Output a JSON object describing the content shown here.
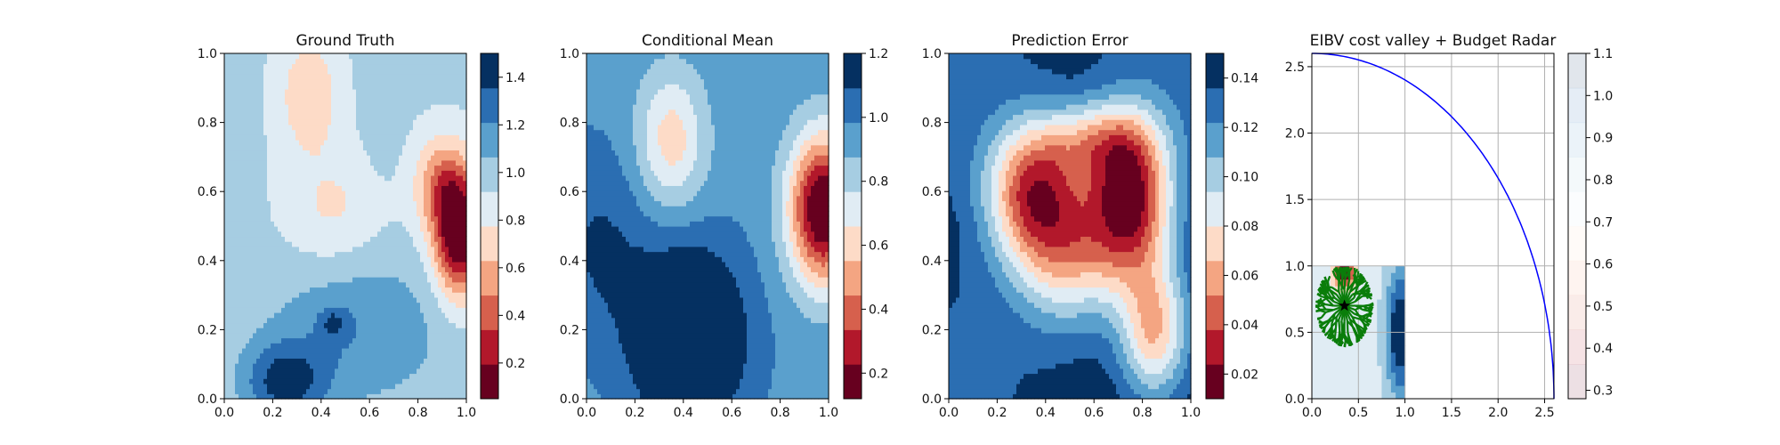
{
  "chart_data": [
    {
      "type": "heatmap",
      "title": "Ground Truth",
      "xlabel": "",
      "ylabel": "",
      "xlim": [
        0,
        1
      ],
      "ylim": [
        0,
        1
      ],
      "xticks": [
        "0.0",
        "0.2",
        "0.4",
        "0.6",
        "0.8",
        "1.0"
      ],
      "yticks": [
        "0.0",
        "0.2",
        "0.4",
        "0.6",
        "0.8",
        "1.0"
      ],
      "grid": false,
      "colormap": "RdBu",
      "colorbar": {
        "range": [
          0.05,
          1.5
        ],
        "levels": 10,
        "ticks": [
          "0.2",
          "0.4",
          "0.6",
          "0.8",
          "1.0",
          "1.2",
          "1.4"
        ],
        "tick_values": [
          0.2,
          0.4,
          0.6,
          0.8,
          1.0,
          1.2,
          1.4
        ]
      },
      "features": [
        {
          "type": "low",
          "x": 0.97,
          "y": 0.47,
          "sx": 0.07,
          "sy": 0.12,
          "amp": -0.95
        },
        {
          "type": "low",
          "x": 0.9,
          "y": 0.62,
          "sx": 0.08,
          "sy": 0.1,
          "amp": -0.45
        },
        {
          "type": "low",
          "x": 0.35,
          "y": 0.88,
          "sx": 0.09,
          "sy": 0.12,
          "amp": -0.3
        },
        {
          "type": "low",
          "x": 0.45,
          "y": 0.55,
          "sx": 0.14,
          "sy": 0.12,
          "amp": -0.2
        },
        {
          "type": "high",
          "x": 0.25,
          "y": 0.05,
          "sx": 0.12,
          "sy": 0.08,
          "amp": 0.45
        },
        {
          "type": "high",
          "x": 0.55,
          "y": 0.2,
          "sx": 0.25,
          "sy": 0.15,
          "amp": 0.25
        },
        {
          "type": "high",
          "x": 0.45,
          "y": 0.22,
          "sx": 0.04,
          "sy": 0.03,
          "amp": 0.25
        },
        {
          "type": "high",
          "x": 0.65,
          "y": 0.85,
          "sx": 0.05,
          "sy": 0.12,
          "amp": 0.1
        }
      ],
      "base": 0.95
    },
    {
      "type": "heatmap",
      "title": "Conditional Mean",
      "xlabel": "",
      "ylabel": "",
      "xlim": [
        0,
        1
      ],
      "ylim": [
        0,
        1
      ],
      "xticks": [
        "0.0",
        "0.2",
        "0.4",
        "0.6",
        "0.8",
        "1.0"
      ],
      "yticks": [
        "0.0",
        "0.2",
        "0.4",
        "0.6",
        "0.8",
        "1.0"
      ],
      "grid": false,
      "colormap": "RdBu",
      "colorbar": {
        "range": [
          0.12,
          1.2
        ],
        "levels": 10,
        "ticks": [
          "0.2",
          "0.4",
          "0.6",
          "0.8",
          "1.0",
          "1.2"
        ],
        "tick_values": [
          0.2,
          0.4,
          0.6,
          0.8,
          1.0,
          1.2
        ]
      },
      "features": [
        {
          "type": "low",
          "x": 0.98,
          "y": 0.55,
          "sx": 0.1,
          "sy": 0.15,
          "amp": -0.9
        },
        {
          "type": "low",
          "x": 0.35,
          "y": 0.75,
          "sx": 0.1,
          "sy": 0.14,
          "amp": -0.35
        },
        {
          "type": "high",
          "x": 0.42,
          "y": 0.18,
          "sx": 0.16,
          "sy": 0.18,
          "amp": 0.45
        },
        {
          "type": "high",
          "x": 0.05,
          "y": 0.45,
          "sx": 0.15,
          "sy": 0.2,
          "amp": 0.15
        }
      ],
      "base": 0.95
    },
    {
      "type": "heatmap",
      "title": "Prediction Error",
      "xlabel": "",
      "ylabel": "",
      "xlim": [
        0,
        1
      ],
      "ylim": [
        0,
        1
      ],
      "xticks": [
        "0.0",
        "0.2",
        "0.4",
        "0.6",
        "0.8",
        "1.0"
      ],
      "yticks": [
        "0.0",
        "0.2",
        "0.4",
        "0.6",
        "0.8",
        "1.0"
      ],
      "grid": false,
      "colormap": "RdBu",
      "colorbar": {
        "range": [
          0.01,
          0.15
        ],
        "levels": 10,
        "ticks": [
          "0.02",
          "0.04",
          "0.06",
          "0.08",
          "0.10",
          "0.12",
          "0.14"
        ],
        "tick_values": [
          0.02,
          0.04,
          0.06,
          0.08,
          0.1,
          0.12,
          0.14
        ]
      },
      "features": [
        {
          "type": "low",
          "x": 0.35,
          "y": 0.6,
          "sx": 0.14,
          "sy": 0.14,
          "amp": -0.1
        },
        {
          "type": "low",
          "x": 0.75,
          "y": 0.58,
          "sx": 0.12,
          "sy": 0.16,
          "amp": -0.12
        },
        {
          "type": "low",
          "x": 0.5,
          "y": 0.42,
          "sx": 0.16,
          "sy": 0.15,
          "amp": -0.07
        },
        {
          "type": "low",
          "x": 0.85,
          "y": 0.2,
          "sx": 0.1,
          "sy": 0.14,
          "amp": -0.08
        },
        {
          "type": "low",
          "x": 0.6,
          "y": 0.75,
          "sx": 0.16,
          "sy": 0.08,
          "amp": -0.05
        }
      ],
      "base": 0.148
    },
    {
      "type": "line",
      "title": "EIBV cost valley + Budget Radar",
      "xlabel": "",
      "ylabel": "",
      "xlim": [
        0,
        2.6
      ],
      "ylim": [
        0,
        2.6
      ],
      "xticks": [
        "0.0",
        "0.5",
        "1.0",
        "1.5",
        "2.0",
        "2.5"
      ],
      "yticks": [
        "0.0",
        "0.5",
        "1.0",
        "1.5",
        "2.0",
        "2.5"
      ],
      "grid": true,
      "series": [
        {
          "kind": "arc",
          "color": "#0000ff",
          "center": [
            0,
            0
          ],
          "radius": 2.6
        }
      ],
      "inset": {
        "extent": [
          0,
          1,
          0,
          1
        ],
        "colormap": "RdBu"
      },
      "tree": {
        "color": "#0a7d0a",
        "root": [
          0.35,
          0.7
        ],
        "branches": 24
      },
      "current_location": [
        0.35,
        0.7
      ],
      "colorbar": {
        "range": [
          0.28,
          1.1
        ],
        "levels": 10,
        "ticks": [
          "0.3",
          "0.4",
          "0.5",
          "0.6",
          "0.7",
          "0.8",
          "0.9",
          "1.0",
          "1.1"
        ],
        "tick_values": [
          0.3,
          0.4,
          0.5,
          0.6,
          0.7,
          0.8,
          0.9,
          1.0,
          1.1
        ]
      }
    }
  ]
}
